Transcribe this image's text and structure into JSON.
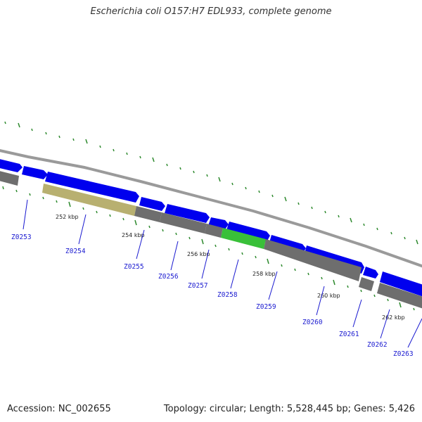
{
  "title": "Escherichia coli O157:H7 EDL933, complete genome",
  "footer": {
    "accession": "Accession: NC_002655",
    "info": "Topology: circular; Length: 5,528,445 bp; Genes: 5,426"
  },
  "scale_labels": [
    "252 kbp",
    "254 kbp",
    "256 kbp",
    "258 kbp",
    "260 kbp",
    "262 kbp"
  ],
  "genes": [
    "Z0253",
    "Z0254",
    "Z0255",
    "Z0256",
    "Z0257",
    "Z0258",
    "Z0259",
    "Z0260",
    "Z0261",
    "Z0262",
    "Z0263"
  ],
  "colors": {
    "cds": "#0000ee",
    "backbone": "#8c8c8c",
    "highlight_green": "#39c039",
    "highlight_olive": "#b8b070",
    "tick": "#2e8a2e",
    "gene_label": "#1a1ad0"
  }
}
